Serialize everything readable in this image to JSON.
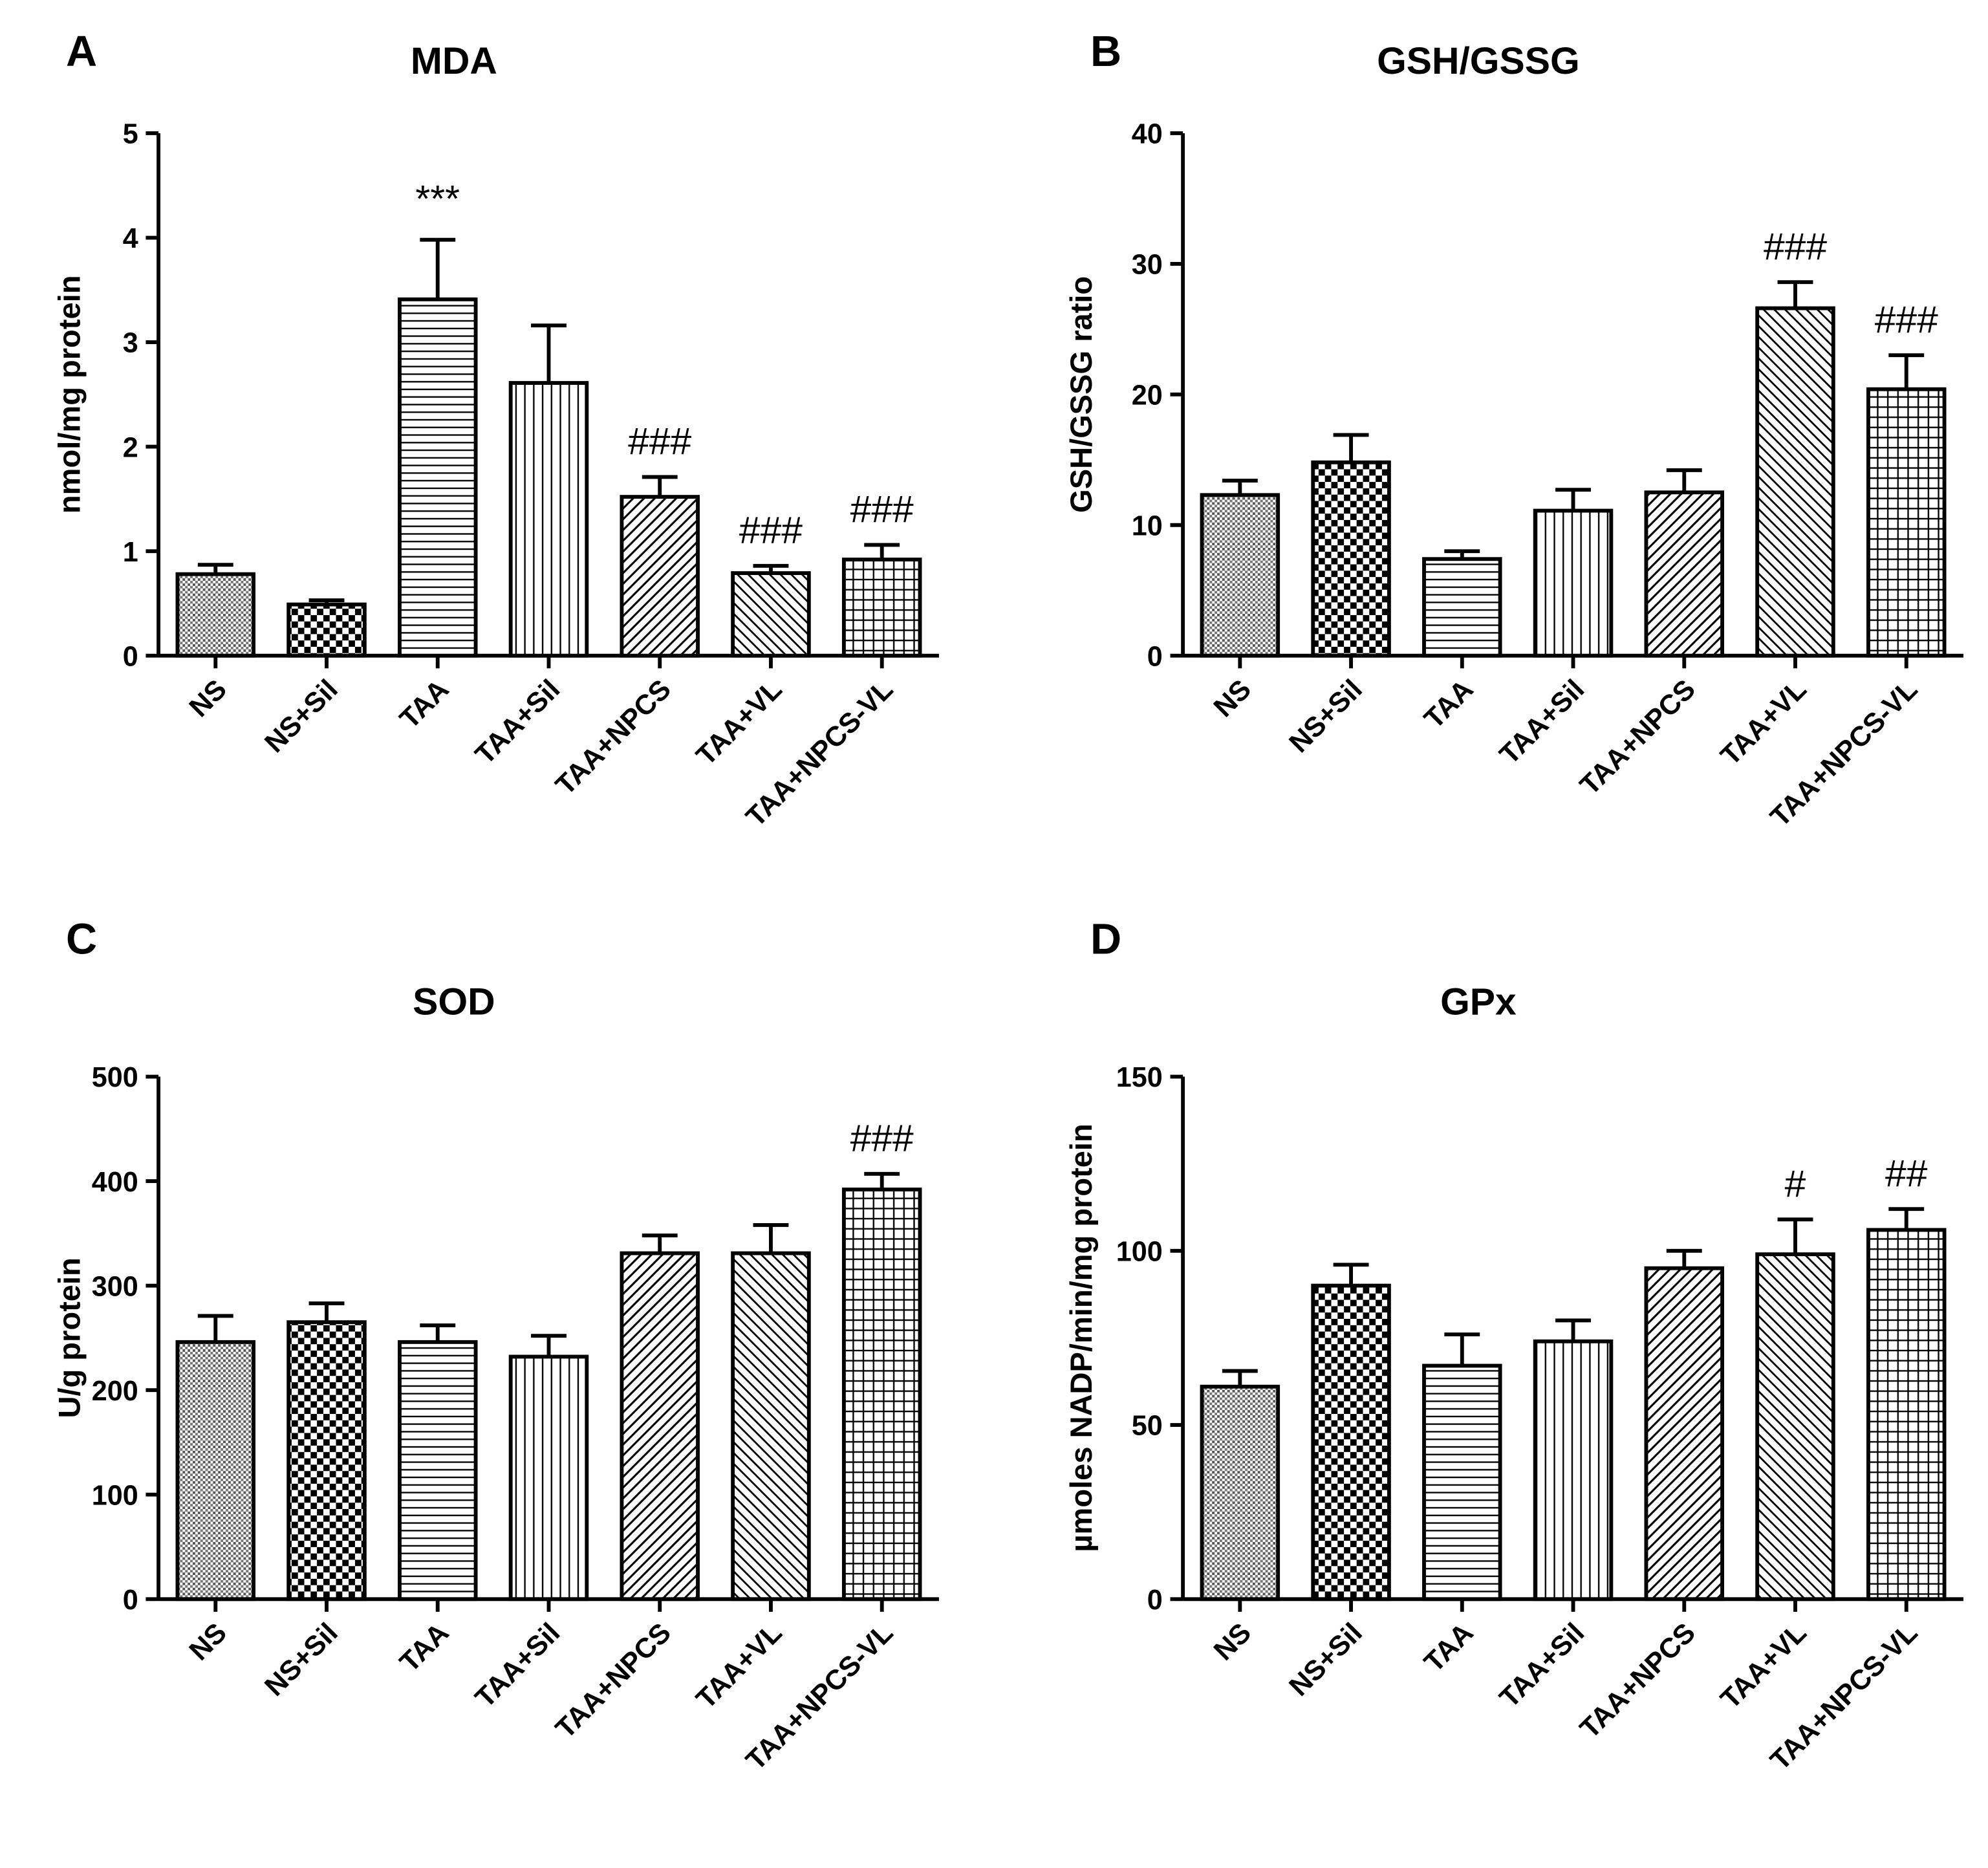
{
  "chart_data": [
    {
      "type": "bar",
      "panel_label": "A",
      "title": "MDA",
      "ylabel": "nmol/mg protein",
      "xlabel": "",
      "categories": [
        "NS",
        "NS+Sil",
        "TAA",
        "TAA+Sil",
        "TAA+NPCS",
        "TAA+VL",
        "TAA+NPCS-VL"
      ],
      "values": [
        0.78,
        0.49,
        3.41,
        2.61,
        1.52,
        0.79,
        0.92
      ],
      "errors": [
        0.09,
        0.04,
        0.57,
        0.55,
        0.19,
        0.07,
        0.14
      ],
      "ylim": [
        0,
        5
      ],
      "yticks": [
        "0",
        "1",
        "2",
        "3",
        "4",
        "5"
      ],
      "annotations": [
        {
          "index": 2,
          "text": "***"
        },
        {
          "index": 4,
          "text": "###"
        },
        {
          "index": 5,
          "text": "###"
        },
        {
          "index": 6,
          "text": "###"
        }
      ]
    },
    {
      "type": "bar",
      "panel_label": "B",
      "title": "GSH/GSSG",
      "ylabel": "GSH/GSSG ratio",
      "xlabel": "",
      "categories": [
        "NS",
        "NS+Sil",
        "TAA",
        "TAA+Sil",
        "TAA+NPCS",
        "TAA+VL",
        "TAA+NPCS-VL"
      ],
      "values": [
        12.3,
        14.8,
        7.4,
        11.1,
        12.5,
        26.6,
        20.4
      ],
      "errors": [
        1.1,
        2.1,
        0.6,
        1.6,
        1.7,
        2.0,
        2.6
      ],
      "ylim": [
        0,
        40
      ],
      "yticks": [
        "0",
        "10",
        "20",
        "30",
        "40"
      ],
      "annotations": [
        {
          "index": 5,
          "text": "###"
        },
        {
          "index": 6,
          "text": "###"
        }
      ]
    },
    {
      "type": "bar",
      "panel_label": "C",
      "title": "SOD",
      "ylabel": "U/g protein",
      "xlabel": "",
      "categories": [
        "NS",
        "NS+Sil",
        "TAA",
        "TAA+Sil",
        "TAA+NPCS",
        "TAA+VL",
        "TAA+NPCS-VL"
      ],
      "values": [
        246,
        265,
        246,
        232,
        331,
        331,
        392
      ],
      "errors": [
        25,
        18,
        16,
        20,
        17,
        27,
        15
      ],
      "ylim": [
        0,
        500
      ],
      "yticks": [
        "0",
        "100",
        "200",
        "300",
        "400",
        "500"
      ],
      "annotations": [
        {
          "index": 6,
          "text": "###"
        }
      ]
    },
    {
      "type": "bar",
      "panel_label": "D",
      "title": "GPx",
      "ylabel": "µmoles NADP/min/mg protein",
      "xlabel": "",
      "categories": [
        "NS",
        "NS+Sil",
        "TAA",
        "TAA+Sil",
        "TAA+NPCS",
        "TAA+VL",
        "TAA+NPCS-VL"
      ],
      "values": [
        61,
        90,
        67,
        74,
        95,
        99,
        106
      ],
      "errors": [
        4.5,
        6,
        9,
        6,
        5,
        10,
        6
      ],
      "ylim": [
        0,
        150
      ],
      "yticks": [
        "0",
        "50",
        "100",
        "150"
      ],
      "annotations": [
        {
          "index": 5,
          "text": "#"
        },
        {
          "index": 6,
          "text": "##"
        }
      ]
    }
  ]
}
